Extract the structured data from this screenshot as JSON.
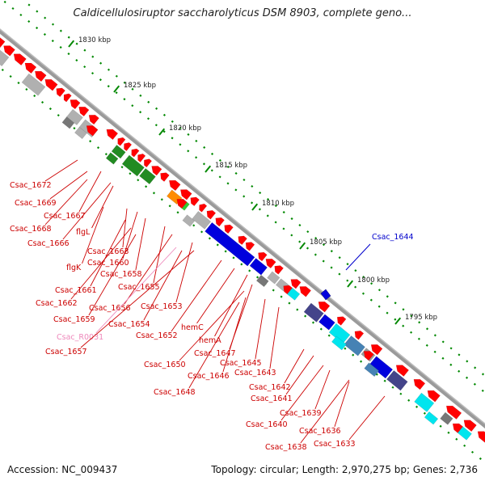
{
  "title": "Caldicellulosiruptor saccharolyticus DSM 8903, complete geno...",
  "footer": {
    "accession": "Accession: NC_009437",
    "summary": "Topology: circular; Length: 2,970,275 bp; Genes: 2,736"
  },
  "ruler": [
    "1830 kbp",
    "1825 kbp",
    "1820 kbp",
    "1815 kbp",
    "1810 kbp",
    "1805 kbp",
    "1800 kbp",
    "1795 kbp"
  ],
  "labels_lower": [
    "Csac_1672",
    "Csac_1669",
    "Csac_1667",
    "Csac_1668",
    "Csac_1666",
    "flgL",
    "Csac_1663",
    "flgK",
    "Csac_1660",
    "Csac_1658",
    "Csac_1661",
    "Csac_1655",
    "Csac_1662",
    "Csac_1656",
    "Csac_1659",
    "Csac_1653",
    "Csac_1654",
    "Csac_R0031",
    "Csac_1652",
    "hemC",
    "Csac_1657",
    "hemA",
    "Csac_1647",
    "Csac_1650",
    "Csac_1645",
    "Csac_1646",
    "Csac_1643",
    "Csac_1648",
    "Csac_1642",
    "Csac_1641",
    "Csac_1639",
    "Csac_1640",
    "Csac_1636",
    "Csac_1633",
    "Csac_1638"
  ],
  "labels_upper": [
    "Csac_1644"
  ],
  "colors": {
    "gene_red": "#ff0000",
    "label_red": "#cc0000",
    "label_blue": "#0000cc",
    "rna_pink": "#ee88bb",
    "tick_green": "#008800",
    "backbone": "#888888",
    "blue": "#0000dd",
    "navy": "#44448a",
    "cyan": "#00e5ee",
    "steel": "#4682b4",
    "green": "#228b22",
    "orange": "#ff8c00",
    "gray": "#b0b0b0",
    "darkgray": "#777777"
  }
}
